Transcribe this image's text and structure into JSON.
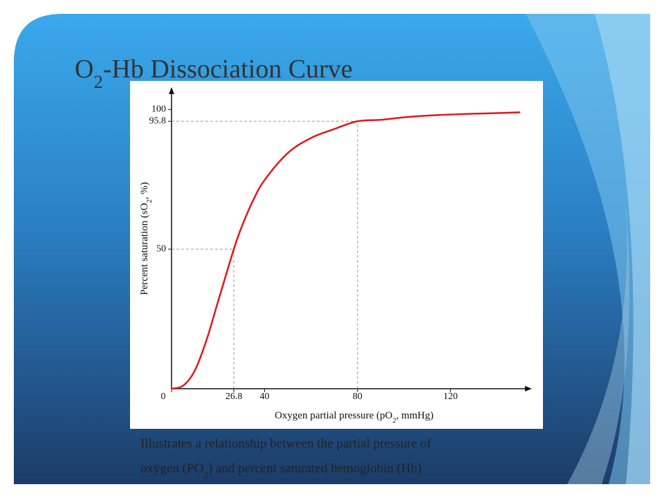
{
  "slide": {
    "title": [
      "O",
      "2",
      "-Hb Dissociation Curve"
    ],
    "caption": [
      [
        "Illustrates a relationship between the partial pressure of"
      ],
      [
        "oxygen (PO",
        "2",
        ") and percent saturated hemoglobin (Hb)"
      ]
    ]
  },
  "chart_data": {
    "type": "line",
    "y_label": [
      "Percent saturation (sO",
      "2",
      ", %)"
    ],
    "x_label": [
      "Oxygen partial pressure (pO",
      "2",
      ", mmHg)"
    ],
    "x": [
      0,
      5,
      10,
      15,
      20,
      26.8,
      30,
      35,
      40,
      50,
      60,
      70,
      80,
      90,
      100,
      110,
      120,
      130,
      140,
      150
    ],
    "series": [
      {
        "color": "#e3151c",
        "values": [
          0,
          1.1,
          6.5,
          17.3,
          31.2,
          50,
          57.6,
          67.3,
          74.7,
          84.4,
          89.8,
          93,
          95.8,
          96.3,
          97.2,
          97.8,
          98.2,
          98.5,
          98.7,
          99
        ]
      }
    ],
    "xlim": [
      0,
      155
    ],
    "ylim": [
      0,
      108
    ],
    "xticks": [
      0,
      26.8,
      40,
      80,
      120
    ],
    "yticks": [
      50,
      95.8,
      100
    ],
    "reference_points": [
      {
        "x": 26.8,
        "y": 50
      },
      {
        "x": 80,
        "y": 95.8
      }
    ]
  }
}
